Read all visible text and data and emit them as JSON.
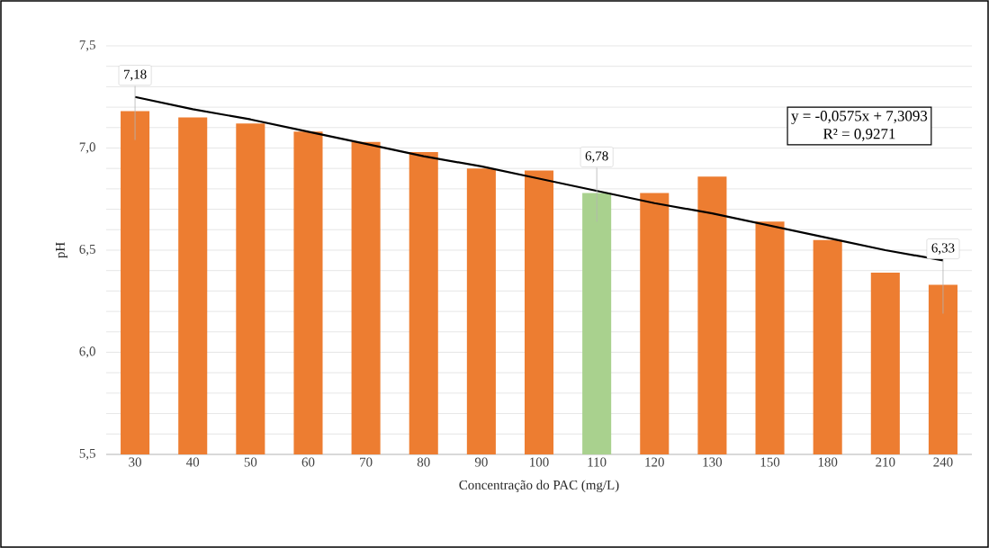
{
  "chart_data": {
    "type": "bar",
    "xlabel": "Concentração do PAC (mg/L)",
    "ylabel": "pH",
    "categories": [
      "30",
      "40",
      "50",
      "60",
      "70",
      "80",
      "90",
      "100",
      "110",
      "120",
      "130",
      "150",
      "180",
      "210",
      "240"
    ],
    "series": [
      {
        "values": [
          7.18,
          7.15,
          7.12,
          7.08,
          7.03,
          6.98,
          6.9,
          6.89,
          6.78,
          6.78,
          6.86,
          6.64,
          6.55,
          6.39,
          6.33
        ],
        "colors": [
          "#ed7d31",
          "#ed7d31",
          "#ed7d31",
          "#ed7d31",
          "#ed7d31",
          "#ed7d31",
          "#ed7d31",
          "#ed7d31",
          "#a9d18e",
          "#ed7d31",
          "#ed7d31",
          "#ed7d31",
          "#ed7d31",
          "#ed7d31",
          "#ed7d31"
        ],
        "value_labels": [
          "7,18",
          null,
          null,
          null,
          null,
          null,
          null,
          null,
          "6,78",
          null,
          null,
          null,
          null,
          null,
          "6,33"
        ]
      },
      {
        "type": "line",
        "color": "#000000",
        "values": [
          7.25,
          7.19,
          7.14,
          7.08,
          7.02,
          6.96,
          6.91,
          6.85,
          6.79,
          6.73,
          6.68,
          6.62,
          6.56,
          6.5,
          6.45
        ]
      }
    ],
    "ylim": [
      5.5,
      7.5
    ],
    "yticks": [
      {
        "value": 5.5,
        "label": "5,5"
      },
      {
        "value": 5.6,
        "label": null
      },
      {
        "value": 5.7,
        "label": null
      },
      {
        "value": 5.8,
        "label": null
      },
      {
        "value": 5.9,
        "label": null
      },
      {
        "value": 6.0,
        "label": "6,0"
      },
      {
        "value": 6.1,
        "label": null
      },
      {
        "value": 6.2,
        "label": null
      },
      {
        "value": 6.3,
        "label": null
      },
      {
        "value": 6.4,
        "label": null
      },
      {
        "value": 6.5,
        "label": "6,5"
      },
      {
        "value": 6.6,
        "label": null
      },
      {
        "value": 6.7,
        "label": null
      },
      {
        "value": 6.8,
        "label": null
      },
      {
        "value": 6.9,
        "label": null
      },
      {
        "value": 7.0,
        "label": "7,0"
      },
      {
        "value": 7.1,
        "label": null
      },
      {
        "value": 7.2,
        "label": null
      },
      {
        "value": 7.3,
        "label": null
      },
      {
        "value": 7.4,
        "label": null
      },
      {
        "value": 7.5,
        "label": "7,5"
      }
    ],
    "grid": "y",
    "annotations": [
      "y = -0,0575x + 7,3093",
      "R² = 0,9271"
    ]
  }
}
